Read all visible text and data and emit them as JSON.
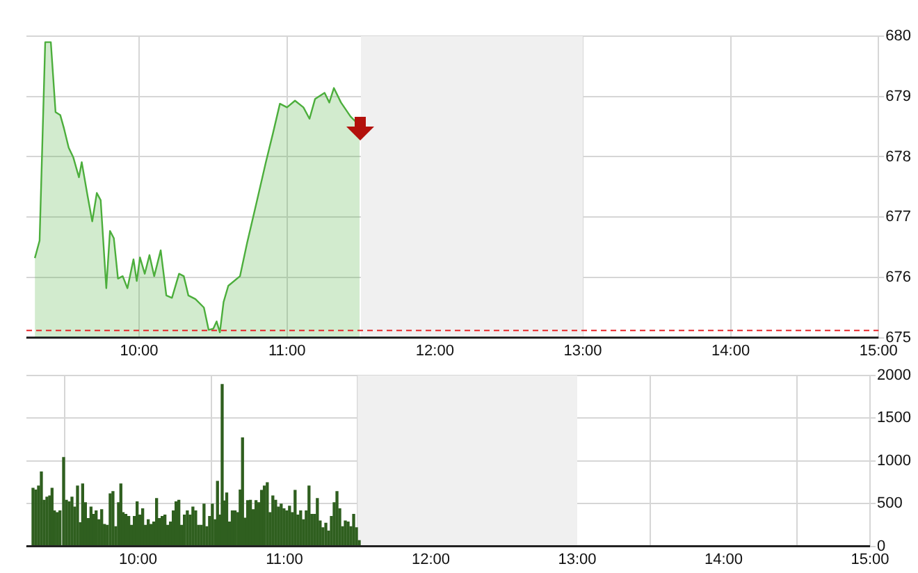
{
  "chart_data": [
    {
      "type": "area",
      "xlim": [
        9.238,
        15
      ],
      "ylim": [
        675,
        680
      ],
      "yticks": [
        675,
        676,
        677,
        678,
        679,
        680
      ],
      "xticks": [
        {
          "value": 10,
          "label": "10:00"
        },
        {
          "value": 11,
          "label": "11:00"
        },
        {
          "value": 12,
          "label": "12:00"
        },
        {
          "value": 13,
          "label": "13:00"
        },
        {
          "value": 14,
          "label": "14:00"
        },
        {
          "value": 15,
          "label": "15:00"
        }
      ],
      "grid": true,
      "legend": false,
      "bands": [
        {
          "axis": "x",
          "from": 11.5,
          "to": 13,
          "color": "#f0f0f0"
        }
      ],
      "ref_lines": [
        {
          "axis": "y",
          "value": 675.12,
          "color": "#e8262a",
          "line_style": "dashed"
        }
      ],
      "series": [
        {
          "color": "#4cae3c",
          "x": [
            9.295,
            9.327,
            9.365,
            9.403,
            9.435,
            9.467,
            9.492,
            9.524,
            9.555,
            9.593,
            9.612,
            9.651,
            9.683,
            9.714,
            9.74,
            9.778,
            9.803,
            9.829,
            9.857,
            9.889,
            9.921,
            9.962,
            9.984,
            10.006,
            10.038,
            10.07,
            10.102,
            10.146,
            10.184,
            10.222,
            10.27,
            10.302,
            10.333,
            10.381,
            10.438,
            10.47,
            10.502,
            10.524,
            10.546,
            10.571,
            10.603,
            10.682,
            10.73,
            10.794,
            10.857,
            10.905,
            10.952,
            11.0,
            11.054,
            11.111,
            11.152,
            11.19,
            11.254,
            11.286,
            11.317,
            11.365,
            11.429,
            11.492
          ],
          "values": [
            676.32,
            676.61,
            679.9,
            679.9,
            678.74,
            678.69,
            678.47,
            678.15,
            677.99,
            677.66,
            677.91,
            677.36,
            676.93,
            677.4,
            677.28,
            675.82,
            676.77,
            676.65,
            675.98,
            676.02,
            675.82,
            676.3,
            675.94,
            676.33,
            676.06,
            676.37,
            676.02,
            676.45,
            675.7,
            675.66,
            676.06,
            676.02,
            675.7,
            675.64,
            675.5,
            675.13,
            675.15,
            675.27,
            675.09,
            675.59,
            675.86,
            676.02,
            676.57,
            677.24,
            677.91,
            678.39,
            678.88,
            678.82,
            678.93,
            678.82,
            678.63,
            678.96,
            679.06,
            678.9,
            679.14,
            678.9,
            678.67,
            678.51
          ]
        }
      ]
    },
    {
      "type": "bar",
      "xlim": [
        9.238,
        15
      ],
      "ylim": [
        0,
        2000
      ],
      "yticks": [
        0,
        500,
        1000,
        1500,
        2000
      ],
      "xticks": [
        {
          "value": 10,
          "label": "10:00"
        },
        {
          "value": 11,
          "label": "11:00"
        },
        {
          "value": 12,
          "label": "12:00"
        },
        {
          "value": 13,
          "label": "13:00"
        },
        {
          "value": 14,
          "label": "14:00"
        },
        {
          "value": 15,
          "label": "15:00"
        }
      ],
      "grid": true,
      "legend": false,
      "bands": [
        {
          "axis": "x",
          "from": 11.5,
          "to": 13,
          "color": "#f0f0f0"
        }
      ],
      "series": [
        {
          "color": "#2f5f1f",
          "x": [
            9.283,
            9.302,
            9.321,
            9.34,
            9.359,
            9.378,
            9.397,
            9.413,
            9.429,
            9.448,
            9.467,
            9.492,
            9.511,
            9.53,
            9.549,
            9.568,
            9.587,
            9.606,
            9.622,
            9.641,
            9.66,
            9.679,
            9.698,
            9.714,
            9.733,
            9.752,
            9.771,
            9.79,
            9.81,
            9.829,
            9.848,
            9.867,
            9.883,
            9.898,
            9.917,
            9.937,
            9.956,
            9.975,
            9.994,
            10.013,
            10.032,
            10.051,
            10.07,
            10.089,
            10.108,
            10.127,
            10.146,
            10.165,
            10.184,
            10.203,
            10.222,
            10.241,
            10.26,
            10.279,
            10.298,
            10.317,
            10.337,
            10.356,
            10.375,
            10.394,
            10.413,
            10.432,
            10.451,
            10.47,
            10.489,
            10.508,
            10.527,
            10.543,
            10.559,
            10.575,
            10.59,
            10.606,
            10.625,
            10.644,
            10.663,
            10.683,
            10.698,
            10.714,
            10.73,
            10.749,
            10.768,
            10.787,
            10.806,
            10.825,
            10.844,
            10.863,
            10.883,
            10.902,
            10.921,
            10.94,
            10.959,
            10.978,
            10.997,
            11.016,
            11.035,
            11.054,
            11.073,
            11.092,
            11.111,
            11.13,
            11.149,
            11.168,
            11.187,
            11.206,
            11.225,
            11.244,
            11.263,
            11.283,
            11.302,
            11.321,
            11.34,
            11.359,
            11.378,
            11.397,
            11.416,
            11.435,
            11.454,
            11.473,
            11.492,
            11.511
          ],
          "values": [
            680,
            660,
            705,
            870,
            540,
            575,
            590,
            680,
            415,
            395,
            415,
            1040,
            540,
            520,
            575,
            460,
            705,
            277,
            730,
            510,
            325,
            460,
            375,
            415,
            310,
            430,
            257,
            245,
            615,
            640,
            230,
            510,
            730,
            395,
            375,
            350,
            245,
            350,
            520,
            365,
            440,
            245,
            310,
            257,
            285,
            560,
            325,
            350,
            365,
            245,
            285,
            415,
            520,
            540,
            245,
            365,
            415,
            365,
            460,
            415,
            245,
            245,
            495,
            230,
            350,
            495,
            310,
            760,
            365,
            1895,
            530,
            625,
            285,
            415,
            415,
            395,
            660,
            1270,
            330,
            535,
            540,
            430,
            535,
            510,
            655,
            705,
            745,
            395,
            590,
            540,
            460,
            495,
            440,
            415,
            470,
            395,
            655,
            365,
            415,
            310,
            415,
            705,
            375,
            375,
            560,
            297,
            218,
            270,
            178,
            350,
            510,
            640,
            440,
            230,
            297,
            285,
            230,
            375,
            218,
            66
          ]
        }
      ]
    }
  ]
}
